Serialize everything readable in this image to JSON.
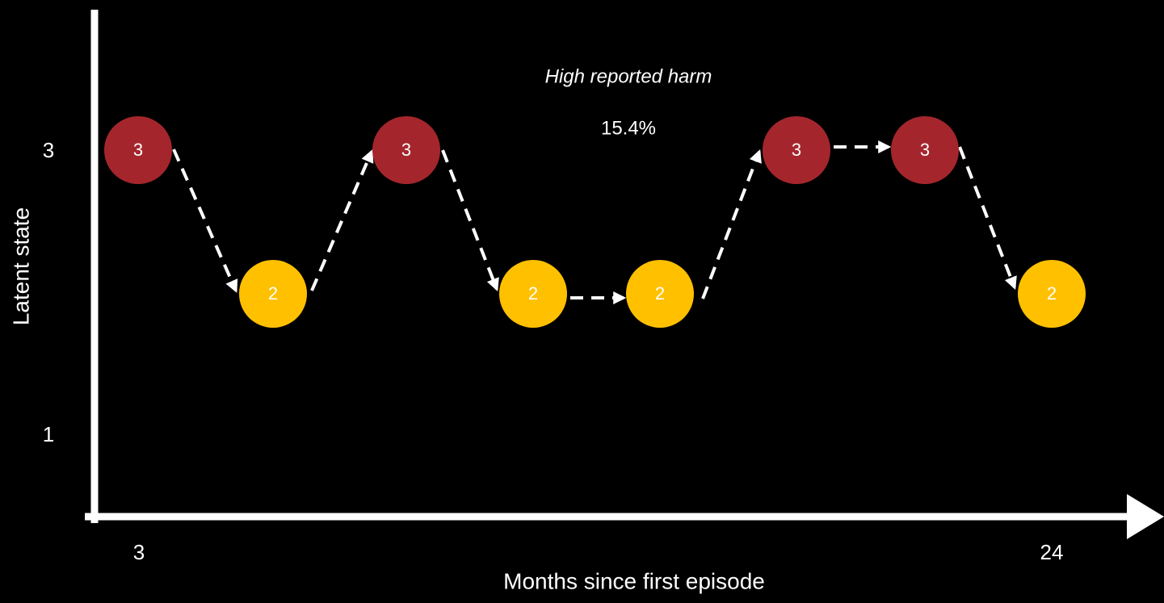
{
  "annotation": {
    "title": "High reported harm",
    "value": "15.4%"
  },
  "y_axis": {
    "label": "Latent state",
    "ticks": [
      "3",
      "1"
    ]
  },
  "x_axis": {
    "label": "Months since first episode",
    "ticks": [
      "3",
      "24"
    ]
  },
  "nodes": [
    {
      "label": "3"
    },
    {
      "label": "2"
    },
    {
      "label": "3"
    },
    {
      "label": "2"
    },
    {
      "label": "2"
    },
    {
      "label": "3"
    },
    {
      "label": "3"
    },
    {
      "label": "2"
    }
  ]
}
